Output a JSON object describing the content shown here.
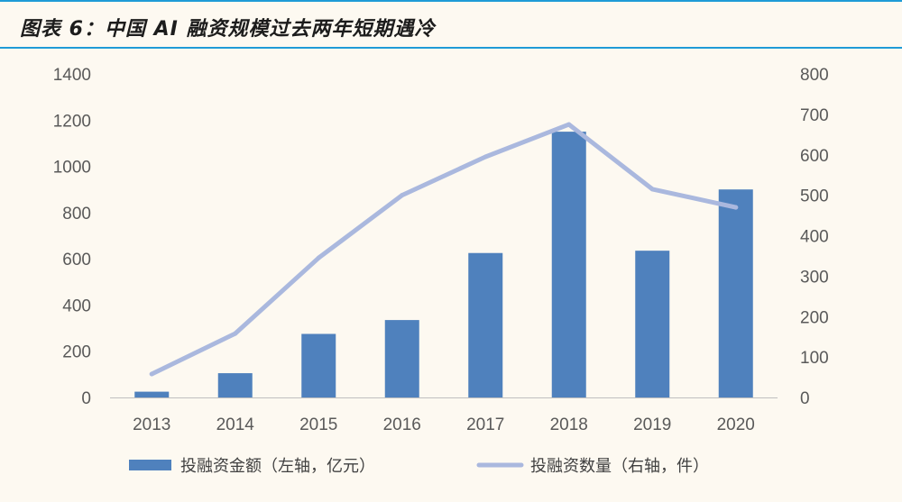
{
  "title": "图表 6：中国 AI 融资规模过去两年短期遇冷",
  "colors": {
    "bar": "#4f81bd",
    "line": "#aab8de",
    "header_rule": "#1f9bd7",
    "background": "#fdf9f1"
  },
  "chart_data": {
    "type": "bar",
    "title": "",
    "categories": [
      "2013",
      "2014",
      "2015",
      "2016",
      "2017",
      "2018",
      "2019",
      "2020"
    ],
    "series": [
      {
        "name": "投融资金额（左轴，亿元）",
        "type": "bar",
        "axis": "left",
        "values": [
          25,
          105,
          275,
          335,
          625,
          1150,
          635,
          900
        ]
      },
      {
        "name": "投融资数量（右轴，件）",
        "type": "line",
        "axis": "right",
        "values": [
          58,
          158,
          345,
          500,
          595,
          675,
          515,
          470
        ]
      }
    ],
    "y_left": {
      "ylim": [
        0,
        1400
      ],
      "ticks": [
        0,
        200,
        400,
        600,
        800,
        1000,
        1200,
        1400
      ]
    },
    "y_right": {
      "ylim": [
        0,
        800
      ],
      "ticks": [
        0,
        100,
        200,
        300,
        400,
        500,
        600,
        700,
        800
      ]
    },
    "grid": false,
    "legend_position": "bottom"
  }
}
